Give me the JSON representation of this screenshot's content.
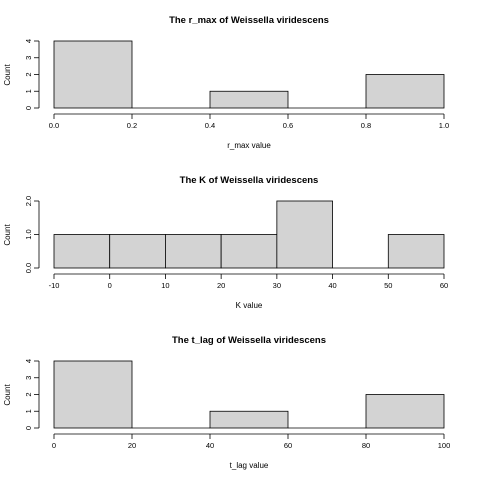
{
  "chart_data": [
    {
      "type": "bar",
      "title": "The r_max of Weissella viridescens",
      "xlabel": "r_max value",
      "ylabel": "Count",
      "bins": [
        [
          0.0,
          0.2
        ],
        [
          0.2,
          0.4
        ],
        [
          0.4,
          0.6
        ],
        [
          0.6,
          0.8
        ],
        [
          0.8,
          1.0
        ]
      ],
      "values": [
        4,
        0,
        1,
        0,
        2
      ],
      "xlim": [
        0.0,
        1.0
      ],
      "ylim": [
        0,
        4
      ],
      "xticks": [
        "0.0",
        "0.2",
        "0.4",
        "0.6",
        "0.8",
        "1.0"
      ],
      "yticks": [
        "0",
        "1",
        "2",
        "3",
        "4"
      ],
      "grid": false
    },
    {
      "type": "bar",
      "title": "The K of Weissella viridescens",
      "xlabel": "K value",
      "ylabel": "Count",
      "bins": [
        [
          -10,
          0
        ],
        [
          0,
          10
        ],
        [
          10,
          20
        ],
        [
          20,
          30
        ],
        [
          30,
          40
        ],
        [
          40,
          50
        ],
        [
          50,
          60
        ]
      ],
      "values": [
        1,
        1,
        1,
        1,
        2,
        0,
        1
      ],
      "xlim": [
        -10,
        60
      ],
      "ylim": [
        0,
        2
      ],
      "xticks": [
        "-10",
        "0",
        "10",
        "20",
        "30",
        "40",
        "50",
        "60"
      ],
      "yticks": [
        "0.0",
        "1.0",
        "2.0"
      ],
      "grid": false
    },
    {
      "type": "bar",
      "title": "The t_lag of Weissella viridescens",
      "xlabel": "t_lag value",
      "ylabel": "Count",
      "bins": [
        [
          0,
          20
        ],
        [
          20,
          40
        ],
        [
          40,
          60
        ],
        [
          60,
          80
        ],
        [
          80,
          100
        ]
      ],
      "values": [
        4,
        0,
        1,
        0,
        2
      ],
      "xlim": [
        0,
        100
      ],
      "ylim": [
        0,
        4
      ],
      "xticks": [
        "0",
        "20",
        "40",
        "60",
        "80",
        "100"
      ],
      "yticks": [
        "0",
        "1",
        "2",
        "3",
        "4"
      ],
      "grid": false
    }
  ]
}
